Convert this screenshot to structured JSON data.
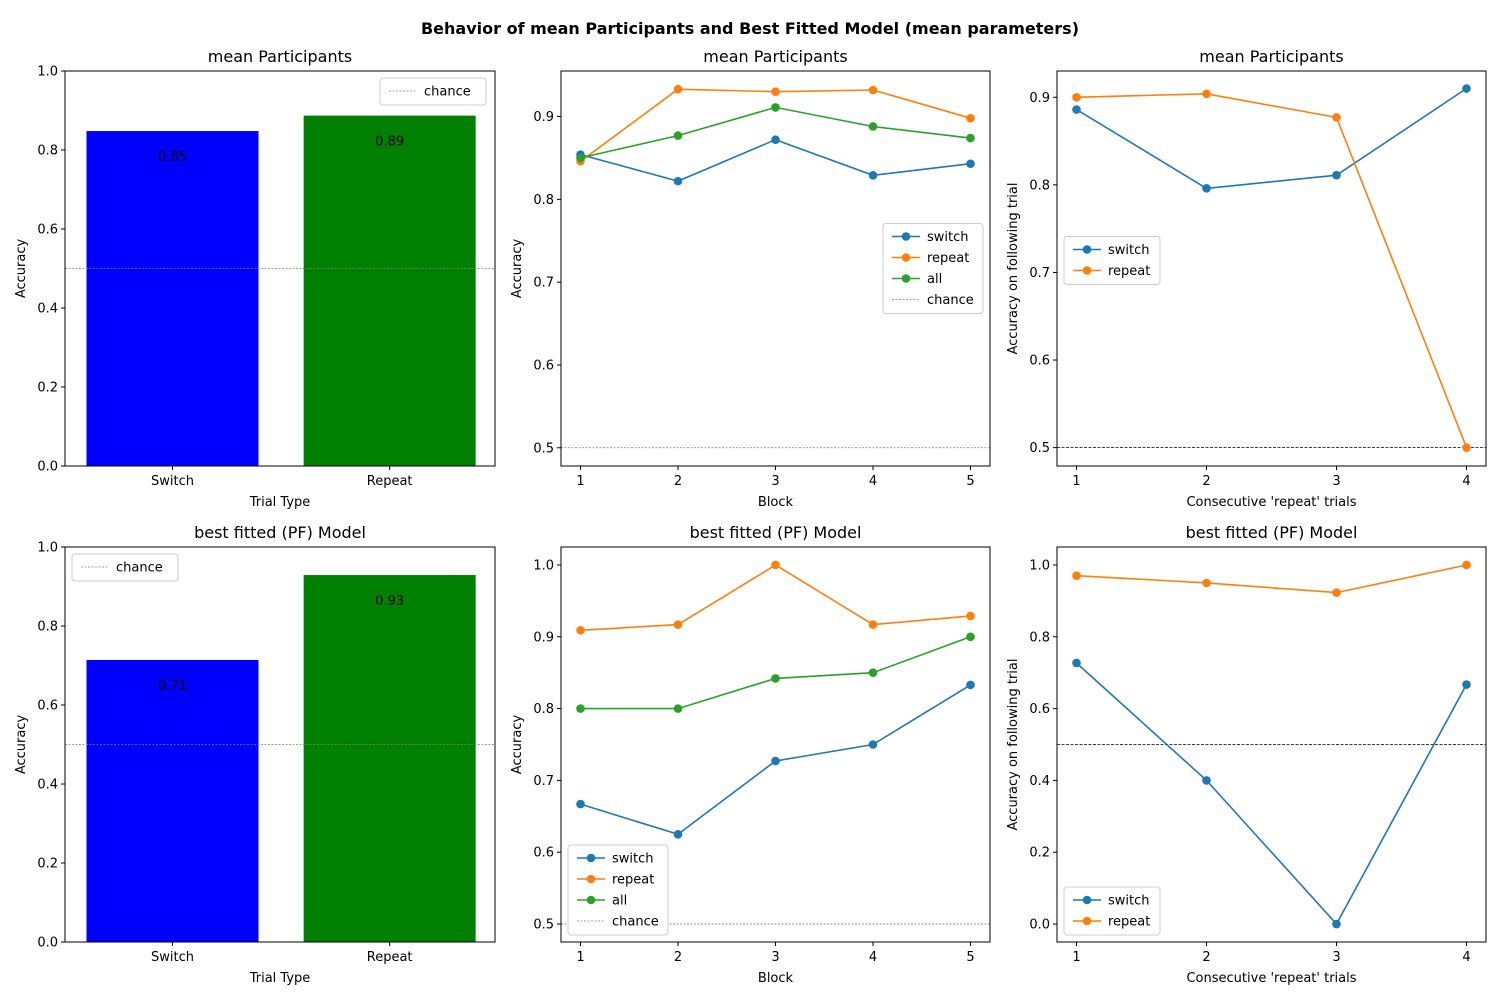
{
  "figure": {
    "suptitle": "Behavior of mean Participants and Best Fitted Model (mean parameters)"
  },
  "colors": {
    "switch_bar": "#0000ff",
    "repeat_bar": "#008000",
    "switch_line": "#1f77b4",
    "repeat_line": "#ff7f0e",
    "all_line": "#2ca02c",
    "chance_line": "#808080",
    "chance_line_dark": "#000000"
  },
  "chart_data": [
    {
      "id": "p_bar",
      "type": "bar",
      "title": "mean Participants",
      "xlabel": "Trial Type",
      "ylabel": "Accuracy",
      "categories": [
        "Switch",
        "Repeat"
      ],
      "values": [
        0.848,
        0.887
      ],
      "value_labels": [
        "0.85",
        "0.89"
      ],
      "bar_colors": [
        "#0000ff",
        "#008000"
      ],
      "ylim": [
        0,
        1
      ],
      "yticks": [
        0,
        0.2,
        0.4,
        0.6,
        0.8,
        1.0
      ],
      "ytick_labels": [
        "0.0",
        "0.2",
        "0.4",
        "0.6",
        "0.8",
        "1.0"
      ],
      "chance": 0.5,
      "legend": {
        "position": "upper right",
        "entries": [
          "chance"
        ]
      }
    },
    {
      "id": "p_block",
      "type": "line",
      "title": "mean Participants",
      "xlabel": "Block",
      "ylabel": "Accuracy",
      "x": [
        1,
        2,
        3,
        4,
        5
      ],
      "series": [
        {
          "name": "switch",
          "color": "#1f77b4",
          "values": [
            0.854,
            0.822,
            0.872,
            0.829,
            0.843
          ]
        },
        {
          "name": "repeat",
          "color": "#ff7f0e",
          "values": [
            0.846,
            0.933,
            0.93,
            0.932,
            0.898
          ]
        },
        {
          "name": "all",
          "color": "#2ca02c",
          "values": [
            0.85,
            0.877,
            0.911,
            0.888,
            0.874
          ]
        }
      ],
      "xlim": [
        0.8,
        5.2
      ],
      "ylim": [
        0.478,
        0.955
      ],
      "yticks": [
        0.5,
        0.6,
        0.7,
        0.8,
        0.9
      ],
      "ytick_labels": [
        "0.5",
        "0.6",
        "0.7",
        "0.8",
        "0.9"
      ],
      "chance": 0.5,
      "legend": {
        "position": "center right",
        "entries": [
          "switch",
          "repeat",
          "all",
          "chance"
        ]
      }
    },
    {
      "id": "p_consec",
      "type": "line",
      "title": "mean Participants",
      "xlabel": "Consecutive 'repeat' trials",
      "ylabel": "Accuracy on following trial",
      "x": [
        1,
        2,
        3,
        4
      ],
      "series": [
        {
          "name": "switch",
          "color": "#1f77b4",
          "values": [
            0.886,
            0.796,
            0.811,
            0.91
          ]
        },
        {
          "name": "repeat",
          "color": "#ff7f0e",
          "values": [
            0.9,
            0.904,
            0.877,
            0.5
          ]
        }
      ],
      "xlim": [
        0.85,
        4.15
      ],
      "ylim": [
        0.479,
        0.93
      ],
      "yticks": [
        0.5,
        0.6,
        0.7,
        0.8,
        0.9
      ],
      "ytick_labels": [
        "0.5",
        "0.6",
        "0.7",
        "0.8",
        "0.9"
      ],
      "chance": 0.5,
      "legend": {
        "position": "center left",
        "entries": [
          "switch",
          "repeat"
        ]
      }
    },
    {
      "id": "m_bar",
      "type": "bar",
      "title": "best fitted (PF) Model",
      "xlabel": "Trial Type",
      "ylabel": "Accuracy",
      "categories": [
        "Switch",
        "Repeat"
      ],
      "values": [
        0.714,
        0.929
      ],
      "value_labels": [
        "0.71",
        "0.93"
      ],
      "bar_colors": [
        "#0000ff",
        "#008000"
      ],
      "ylim": [
        0,
        1
      ],
      "yticks": [
        0,
        0.2,
        0.4,
        0.6,
        0.8,
        1.0
      ],
      "ytick_labels": [
        "0.0",
        "0.2",
        "0.4",
        "0.6",
        "0.8",
        "1.0"
      ],
      "chance": 0.5,
      "legend": {
        "position": "upper left",
        "entries": [
          "chance"
        ]
      }
    },
    {
      "id": "m_block",
      "type": "line",
      "title": "best fitted (PF) Model",
      "xlabel": "Block",
      "ylabel": "Accuracy",
      "x": [
        1,
        2,
        3,
        4,
        5
      ],
      "series": [
        {
          "name": "switch",
          "color": "#1f77b4",
          "values": [
            0.667,
            0.625,
            0.727,
            0.75,
            0.833
          ]
        },
        {
          "name": "repeat",
          "color": "#ff7f0e",
          "values": [
            0.909,
            0.917,
            1.0,
            0.917,
            0.929
          ]
        },
        {
          "name": "all",
          "color": "#2ca02c",
          "values": [
            0.8,
            0.8,
            0.842,
            0.85,
            0.9
          ]
        }
      ],
      "xlim": [
        0.8,
        5.2
      ],
      "ylim": [
        0.475,
        1.025
      ],
      "yticks": [
        0.5,
        0.6,
        0.7,
        0.8,
        0.9,
        1.0
      ],
      "ytick_labels": [
        "0.5",
        "0.6",
        "0.7",
        "0.8",
        "0.9",
        "1.0"
      ],
      "chance": 0.5,
      "legend": {
        "position": "lower left",
        "entries": [
          "switch",
          "repeat",
          "all",
          "chance"
        ]
      }
    },
    {
      "id": "m_consec",
      "type": "line",
      "title": "best fitted (PF) Model",
      "xlabel": "Consecutive 'repeat' trials",
      "ylabel": "Accuracy on following trial",
      "x": [
        1,
        2,
        3,
        4
      ],
      "series": [
        {
          "name": "switch",
          "color": "#1f77b4",
          "values": [
            0.727,
            0.4,
            0.0,
            0.667
          ]
        },
        {
          "name": "repeat",
          "color": "#ff7f0e",
          "values": [
            0.97,
            0.95,
            0.923,
            1.0
          ]
        }
      ],
      "xlim": [
        0.85,
        4.15
      ],
      "ylim": [
        -0.05,
        1.05
      ],
      "yticks": [
        0,
        0.2,
        0.4,
        0.6,
        0.8,
        1.0
      ],
      "ytick_labels": [
        "0.0",
        "0.2",
        "0.4",
        "0.6",
        "0.8",
        "1.0"
      ],
      "chance": 0.5,
      "legend": {
        "position": "lower left",
        "entries": [
          "switch",
          "repeat"
        ]
      }
    }
  ]
}
